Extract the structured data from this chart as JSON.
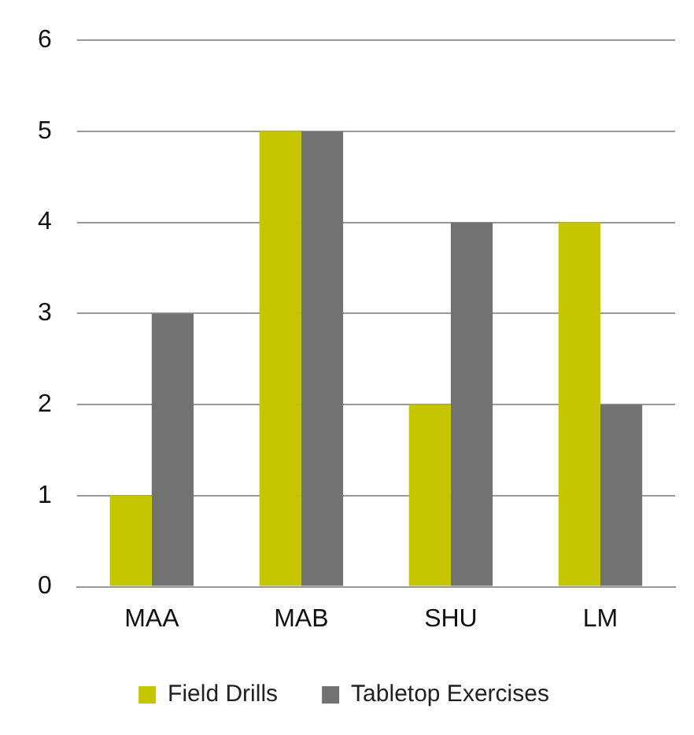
{
  "chart_data": {
    "type": "bar",
    "categories": [
      "MAA",
      "MAB",
      "SHU",
      "LM"
    ],
    "series": [
      {
        "name": "Field Drills",
        "color": "#c5c500",
        "values": [
          1,
          5,
          2,
          4
        ]
      },
      {
        "name": "Tabletop Exercises",
        "color": "#727272",
        "values": [
          3,
          5,
          4,
          2
        ]
      }
    ],
    "ylim": [
      0,
      6
    ],
    "yticks": [
      0,
      1,
      2,
      3,
      4,
      5,
      6
    ],
    "grid": "y",
    "legend": "bottom"
  }
}
